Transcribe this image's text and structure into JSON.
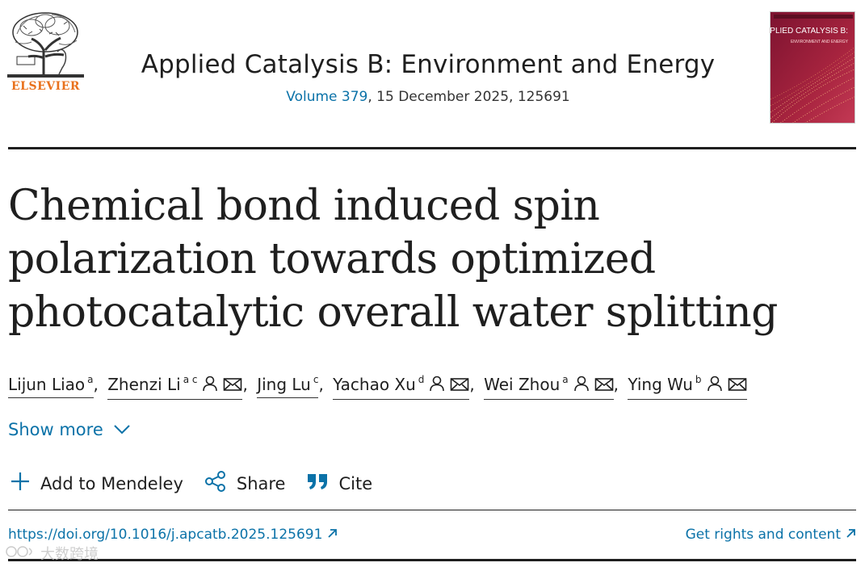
{
  "publisher": {
    "name": "ELSEVIER",
    "logo_icon": "elsevier-tree-logo",
    "brand_color": "#e9711c"
  },
  "journal": {
    "title": "Applied Catalysis B: Environment and Energy",
    "volume_link": "Volume 379",
    "issue_rest": ", 15 December 2025, 125691",
    "cover_title": "APPLIED CATALYSIS B:",
    "cover_subtitle": "ENVIRONMENT AND ENERGY",
    "cover_color": "#9c1f3a"
  },
  "article": {
    "title": "Chemical bond induced spin polarization towards optimized photocatalytic overall water splitting"
  },
  "authors": [
    {
      "name": "Lijun Liao",
      "affil": "a",
      "corresponding": false,
      "sep": ","
    },
    {
      "name": "Zhenzi Li",
      "affil": "a c",
      "corresponding": true,
      "sep": ","
    },
    {
      "name": "Jing Lu",
      "affil": "c",
      "corresponding": false,
      "sep": ","
    },
    {
      "name": "Yachao Xu",
      "affil": "d",
      "corresponding": true,
      "sep": ","
    },
    {
      "name": "Wei Zhou",
      "affil": "a",
      "corresponding": true,
      "sep": ","
    },
    {
      "name": "Ying Wu",
      "affil": "b",
      "corresponding": true,
      "sep": ""
    }
  ],
  "show_more": {
    "label": "Show more",
    "icon": "chevron-down-icon"
  },
  "actions": [
    {
      "label": "Add to Mendeley",
      "icon": "plus-icon"
    },
    {
      "label": "Share",
      "icon": "share-icon"
    },
    {
      "label": "Cite",
      "icon": "quote-icon"
    }
  ],
  "links": {
    "doi": "https://doi.org/10.1016/j.apcatb.2025.125691",
    "rights": "Get rights and content",
    "external_icon": "external-arrow-icon"
  },
  "watermark": "大数跨境",
  "colors": {
    "link": "#0b72a8",
    "text": "#1f1f1f"
  }
}
